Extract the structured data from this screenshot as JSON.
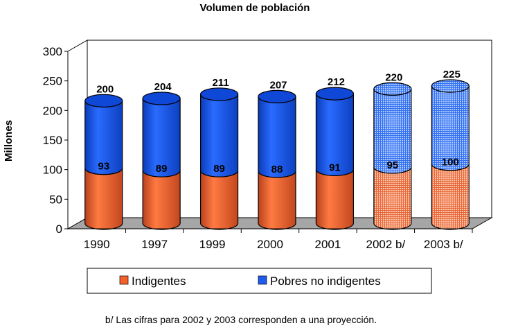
{
  "chart_data": {
    "type": "bar",
    "stacked": true,
    "title": "Volumen de población",
    "ylabel": "Millones",
    "xlabel": "",
    "ylim": [
      0,
      300
    ],
    "yticks": [
      0,
      50,
      100,
      150,
      200,
      250,
      300
    ],
    "categories": [
      "1990",
      "1997",
      "1999",
      "2000",
      "2001",
      "2002 b/",
      "2003 b/"
    ],
    "projected_categories": [
      "2002 b/",
      "2003 b/"
    ],
    "series": [
      {
        "name": "Indigentes",
        "color": "#F4622C",
        "values": [
          93,
          89,
          89,
          88,
          91,
          95,
          100
        ]
      },
      {
        "name": "Pobres no indigentes",
        "color": "#1E5BEF",
        "values": [
          107,
          115,
          122,
          119,
          121,
          125,
          125
        ]
      }
    ],
    "totals": [
      200,
      204,
      211,
      207,
      212,
      220,
      225
    ],
    "legend_position": "bottom",
    "grid": false,
    "footnote": "b/ Las cifras para 2002 y 2003 corresponden a una proyección."
  }
}
